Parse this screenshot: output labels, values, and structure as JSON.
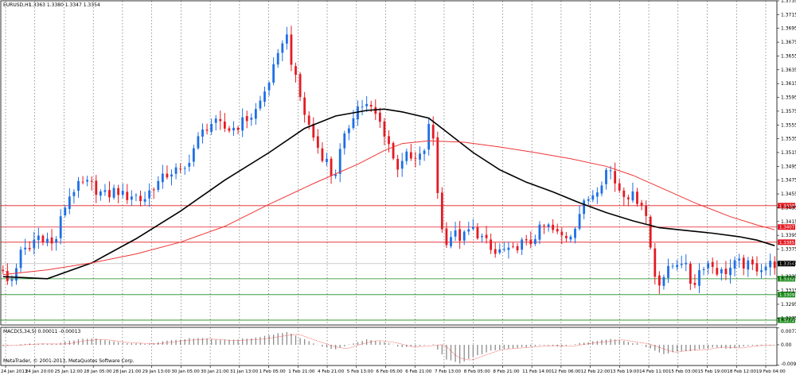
{
  "window": {
    "title": "EURUSD,H1",
    "ohlc": "1.3363 1.3380 1.3347 1.3354"
  },
  "colors": {
    "bull": "#1e6fe6",
    "bear": "#e31b23",
    "ma_fast": "#000000",
    "ma_slow": "#ef3535",
    "support": "#1a8a1a",
    "resistance": "#e31b23",
    "price": "#000000"
  },
  "chart_data": [
    {
      "type": "line",
      "subtype": "candlestick",
      "title": "EURUSD,H1",
      "xlabel": "",
      "ylabel": "",
      "grid": "vertical-dotted",
      "ylim": [
        1.3265,
        1.3735
      ],
      "y_ticks": [
        "1.3735",
        "1.3715",
        "1.3695",
        "1.3675",
        "1.3655",
        "1.3635",
        "1.3615",
        "1.3595",
        "1.3575",
        "1.3555",
        "1.3535",
        "1.3515",
        "1.3495",
        "1.3475",
        "1.3455",
        "1.3435",
        "1.3415",
        "1.3395",
        "1.3375",
        "1.3355",
        "1.3335",
        "1.3315",
        "1.3295",
        "1.3275"
      ],
      "x_ticks": [
        "24 Jan 2013",
        "24 Jan 20:00",
        "25 Jan 12:00",
        "28 Jan 05:00",
        "28 Jan 21:00",
        "29 Jan 13:00",
        "30 Jan 05:00",
        "30 Jan 21:00",
        "31 Jan 13:00",
        "1 Feb 05:00",
        "1 Feb 21:00",
        "4 Feb 21:00",
        "5 Feb 13:00",
        "6 Feb 05:00",
        "6 Feb 21:00",
        "7 Feb 13:00",
        "8 Feb 05:00",
        "8 Feb 21:00",
        "11 Feb 14:00",
        "12 Feb 06:00",
        "12 Feb 22:00",
        "13 Feb 19:00",
        "14 Feb 11:00",
        "15 Feb 03:00",
        "15 Feb 19:00",
        "18 Feb 12:00",
        "19 Feb 04:00"
      ],
      "price_path": [
        [
          0,
          1.3345
        ],
        [
          2,
          1.3322
        ],
        [
          3,
          1.3342
        ],
        [
          5,
          1.3378
        ],
        [
          6,
          1.3368
        ],
        [
          8,
          1.3395
        ],
        [
          10,
          1.3392
        ],
        [
          12,
          1.3378
        ],
        [
          14,
          1.343
        ],
        [
          16,
          1.346
        ],
        [
          18,
          1.3468
        ],
        [
          20,
          1.347
        ],
        [
          22,
          1.3458
        ],
        [
          24,
          1.3452
        ],
        [
          26,
          1.3462
        ],
        [
          28,
          1.345
        ],
        [
          30,
          1.3455
        ],
        [
          32,
          1.3444
        ],
        [
          34,
          1.3464
        ],
        [
          36,
          1.3474
        ],
        [
          38,
          1.3486
        ],
        [
          40,
          1.349
        ],
        [
          41,
          1.3482
        ],
        [
          43,
          1.3515
        ],
        [
          45,
          1.354
        ],
        [
          47,
          1.3558
        ],
        [
          49,
          1.3556
        ],
        [
          51,
          1.3548
        ],
        [
          53,
          1.3552
        ],
        [
          55,
          1.3562
        ],
        [
          57,
          1.357
        ],
        [
          59,
          1.3595
        ],
        [
          61,
          1.3628
        ],
        [
          63,
          1.366
        ],
        [
          64,
          1.3698
        ],
        [
          65,
          1.3668
        ],
        [
          66,
          1.363
        ],
        [
          67,
          1.361
        ],
        [
          68,
          1.358
        ],
        [
          70,
          1.3545
        ],
        [
          72,
          1.3515
        ],
        [
          74,
          1.3498
        ],
        [
          75,
          1.347
        ],
        [
          76,
          1.3505
        ],
        [
          78,
          1.3545
        ],
        [
          80,
          1.358
        ],
        [
          82,
          1.3585
        ],
        [
          84,
          1.3575
        ],
        [
          86,
          1.3552
        ],
        [
          88,
          1.352
        ],
        [
          89,
          1.349
        ],
        [
          91,
          1.3512
        ],
        [
          93,
          1.3502
        ],
        [
          95,
          1.351
        ],
        [
          96,
          1.353
        ],
        [
          97,
          1.3572
        ],
        [
          98,
          1.35
        ],
        [
          99,
          1.342
        ],
        [
          100,
          1.3385
        ],
        [
          102,
          1.3398
        ],
        [
          104,
          1.339
        ],
        [
          106,
          1.3405
        ],
        [
          108,
          1.3395
        ],
        [
          110,
          1.338
        ],
        [
          111,
          1.3365
        ],
        [
          113,
          1.3375
        ],
        [
          115,
          1.3368
        ],
        [
          117,
          1.3385
        ],
        [
          119,
          1.338
        ],
        [
          121,
          1.34
        ],
        [
          123,
          1.341
        ],
        [
          125,
          1.3398
        ],
        [
          127,
          1.3392
        ],
        [
          129,
          1.34
        ],
        [
          130,
          1.3422
        ],
        [
          132,
          1.3445
        ],
        [
          134,
          1.346
        ],
        [
          136,
          1.348
        ],
        [
          137,
          1.3498
        ],
        [
          138,
          1.348
        ],
        [
          139,
          1.3465
        ],
        [
          141,
          1.3455
        ],
        [
          143,
          1.345
        ],
        [
          145,
          1.344
        ],
        [
          146,
          1.3405
        ],
        [
          147,
          1.335
        ],
        [
          148,
          1.3325
        ],
        [
          150,
          1.334
        ],
        [
          152,
          1.3355
        ],
        [
          154,
          1.336
        ],
        [
          155,
          1.3335
        ],
        [
          156,
          1.332
        ],
        [
          158,
          1.3352
        ],
        [
          160,
          1.3355
        ],
        [
          162,
          1.334
        ],
        [
          164,
          1.3345
        ],
        [
          166,
          1.3355
        ],
        [
          168,
          1.3352
        ],
        [
          170,
          1.3348
        ],
        [
          172,
          1.335
        ],
        [
          174,
          1.3354
        ]
      ],
      "series": [
        {
          "name": "",
          "color_key": "ma_fast",
          "points": [
            [
              0,
              1.3335
            ],
            [
              10,
              1.3332
            ],
            [
              20,
              1.3355
            ],
            [
              30,
              1.339
            ],
            [
              40,
              1.343
            ],
            [
              50,
              1.3475
            ],
            [
              60,
              1.3515
            ],
            [
              68,
              1.355
            ],
            [
              75,
              1.3568
            ],
            [
              82,
              1.3576
            ],
            [
              86,
              1.3578
            ],
            [
              90,
              1.3574
            ],
            [
              96,
              1.3565
            ],
            [
              100,
              1.3545
            ],
            [
              106,
              1.3515
            ],
            [
              112,
              1.349
            ],
            [
              118,
              1.3472
            ],
            [
              124,
              1.3458
            ],
            [
              130,
              1.3442
            ],
            [
              136,
              1.3428
            ],
            [
              142,
              1.3416
            ],
            [
              148,
              1.3406
            ],
            [
              154,
              1.3402
            ],
            [
              160,
              1.3398
            ],
            [
              166,
              1.3393
            ],
            [
              170,
              1.3388
            ],
            [
              174,
              1.338
            ]
          ]
        },
        {
          "name": "",
          "color_key": "ma_slow",
          "points": [
            [
              0,
              1.3338
            ],
            [
              10,
              1.3345
            ],
            [
              20,
              1.3355
            ],
            [
              30,
              1.3368
            ],
            [
              40,
              1.3385
            ],
            [
              50,
              1.3408
            ],
            [
              60,
              1.344
            ],
            [
              70,
              1.347
            ],
            [
              80,
              1.3498
            ],
            [
              86,
              1.3518
            ],
            [
              90,
              1.3528
            ],
            [
              96,
              1.3532
            ],
            [
              104,
              1.353
            ],
            [
              112,
              1.3523
            ],
            [
              120,
              1.3515
            ],
            [
              128,
              1.3506
            ],
            [
              136,
              1.3495
            ],
            [
              142,
              1.3482
            ],
            [
              148,
              1.3465
            ],
            [
              156,
              1.3442
            ],
            [
              164,
              1.3422
            ],
            [
              170,
              1.341
            ],
            [
              174,
              1.3403
            ]
          ]
        }
      ],
      "levels": [
        {
          "value": 1.3438,
          "label": "1.3438",
          "type": "resistance"
        },
        {
          "value": 1.3407,
          "label": "1.3407",
          "type": "resistance"
        },
        {
          "value": 1.3385,
          "label": "1.3385",
          "type": "resistance"
        },
        {
          "value": 1.3354,
          "label": "1.3354",
          "type": "price"
        },
        {
          "value": 1.3332,
          "label": "1.3332",
          "type": "support"
        },
        {
          "value": 1.3309,
          "label": "1.3309",
          "type": "support"
        },
        {
          "value": 1.3272,
          "label": "1.3272",
          "type": "support"
        }
      ]
    },
    {
      "type": "bar",
      "title": "MACD(5,34,5) 0.00011 -0.00013",
      "ylim": [
        -0.0095,
        0.008
      ],
      "y_ticks": [
        "0.0077",
        "0.00",
        "-0.00936"
      ],
      "macd_path": [
        [
          0,
          -0.0004
        ],
        [
          6,
          0.0005
        ],
        [
          12,
          0.0004
        ],
        [
          16,
          0.0022
        ],
        [
          20,
          0.003
        ],
        [
          26,
          0.0012
        ],
        [
          32,
          0.0004
        ],
        [
          38,
          0.0022
        ],
        [
          44,
          0.0032
        ],
        [
          50,
          0.0022
        ],
        [
          56,
          0.003
        ],
        [
          62,
          0.0052
        ],
        [
          64,
          0.0058
        ],
        [
          68,
          0.0024
        ],
        [
          72,
          -0.0008
        ],
        [
          75,
          -0.0022
        ],
        [
          78,
          0.0002
        ],
        [
          82,
          0.0024
        ],
        [
          86,
          0.0012
        ],
        [
          90,
          -0.0012
        ],
        [
          94,
          -0.0006
        ],
        [
          97,
          0.0002
        ],
        [
          100,
          -0.0068
        ],
        [
          103,
          -0.0085
        ],
        [
          106,
          -0.0058
        ],
        [
          110,
          -0.0025
        ],
        [
          114,
          -0.0018
        ],
        [
          118,
          -0.001
        ],
        [
          122,
          -0.0004
        ],
        [
          126,
          -0.0008
        ],
        [
          130,
          0.0008
        ],
        [
          134,
          0.0018
        ],
        [
          137,
          0.0028
        ],
        [
          140,
          0.0016
        ],
        [
          143,
          0.0006
        ],
        [
          146,
          -0.0018
        ],
        [
          149,
          -0.0042
        ],
        [
          152,
          -0.003
        ],
        [
          156,
          -0.0026
        ],
        [
          160,
          -0.0012
        ],
        [
          164,
          -0.0018
        ],
        [
          168,
          -0.0004
        ],
        [
          172,
          -0.0002
        ],
        [
          174,
          -0.0002
        ]
      ]
    }
  ],
  "footer": {
    "copyright": "MetaTrader, © 2001-2013, MetaQuotes Software Corp."
  }
}
